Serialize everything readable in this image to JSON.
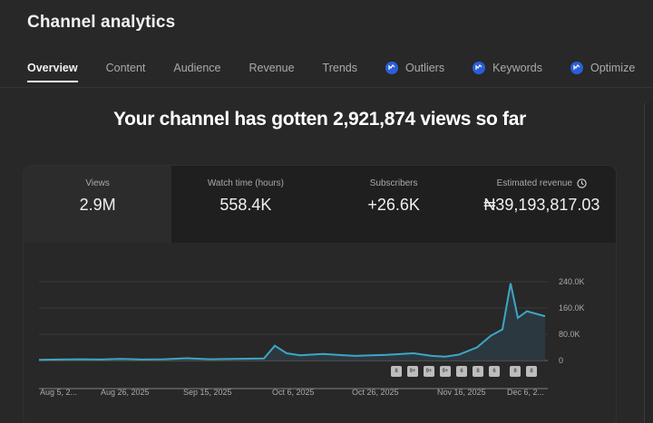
{
  "header": {
    "title": "Channel analytics"
  },
  "tabs": [
    {
      "label": "Overview",
      "active": true,
      "icon": null
    },
    {
      "label": "Content",
      "active": false,
      "icon": null
    },
    {
      "label": "Audience",
      "active": false,
      "icon": null
    },
    {
      "label": "Revenue",
      "active": false,
      "icon": null
    },
    {
      "label": "Trends",
      "active": false,
      "icon": null
    },
    {
      "label": "Outliers",
      "active": false,
      "icon": "insights-icon"
    },
    {
      "label": "Keywords",
      "active": false,
      "icon": "insights-icon"
    },
    {
      "label": "Optimize",
      "active": false,
      "icon": "insights-icon"
    }
  ],
  "headline": "Your channel has gotten 2,921,874 views so far",
  "metrics": [
    {
      "label": "Views",
      "value": "2.9M",
      "selected": true
    },
    {
      "label": "Watch time (hours)",
      "value": "558.4K",
      "selected": false
    },
    {
      "label": "Subscribers",
      "value": "+26.6K",
      "selected": false
    },
    {
      "label": "Estimated revenue",
      "value": "₦39,193,817.03",
      "selected": false,
      "icon": "clock-icon"
    }
  ],
  "colors": {
    "background": "#282828",
    "line": "#3ea6c4",
    "area": "#2c3a42",
    "tab_icon": "#2a5fd9"
  },
  "chart_data": {
    "type": "area",
    "title": "Views",
    "ylabel": "",
    "xlabel": "",
    "y_ticks": [
      "0",
      "80.0K",
      "160.0K",
      "240.0K"
    ],
    "ylim": [
      0,
      240000
    ],
    "x_ticks": [
      "Aug 5, 2...",
      "Aug 26, 2025",
      "Sep 15, 2025",
      "Oct 6, 2025",
      "Oct 26, 2025",
      "Nov 16, 2025",
      "Dec 6, 2..."
    ],
    "series": [
      {
        "name": "Views",
        "x": [
          "Aug 5",
          "Aug 12",
          "Aug 19",
          "Aug 26",
          "Sep 2",
          "Sep 9",
          "Sep 15",
          "Sep 22",
          "Sep 29",
          "Oct 3",
          "Oct 6",
          "Oct 9",
          "Oct 13",
          "Oct 19",
          "Oct 26",
          "Nov 2",
          "Nov 9",
          "Nov 13",
          "Nov 16",
          "Nov 20",
          "Nov 24",
          "Nov 27",
          "Nov 30",
          "Dec 2",
          "Dec 4",
          "Dec 6",
          "Dec 8"
        ],
        "values": [
          2000,
          3000,
          4000,
          3000,
          5000,
          3000,
          4000,
          7000,
          4000,
          6000,
          45000,
          22000,
          16000,
          20000,
          14000,
          17000,
          22000,
          14000,
          12000,
          18000,
          40000,
          75000,
          95000,
          235000,
          130000,
          150000,
          135000
        ]
      }
    ],
    "video_markers": [
      "8",
      "9+",
      "9+",
      "9+",
      "6",
      "8",
      "6",
      "9",
      "8"
    ],
    "grid": true,
    "legend": "none"
  }
}
